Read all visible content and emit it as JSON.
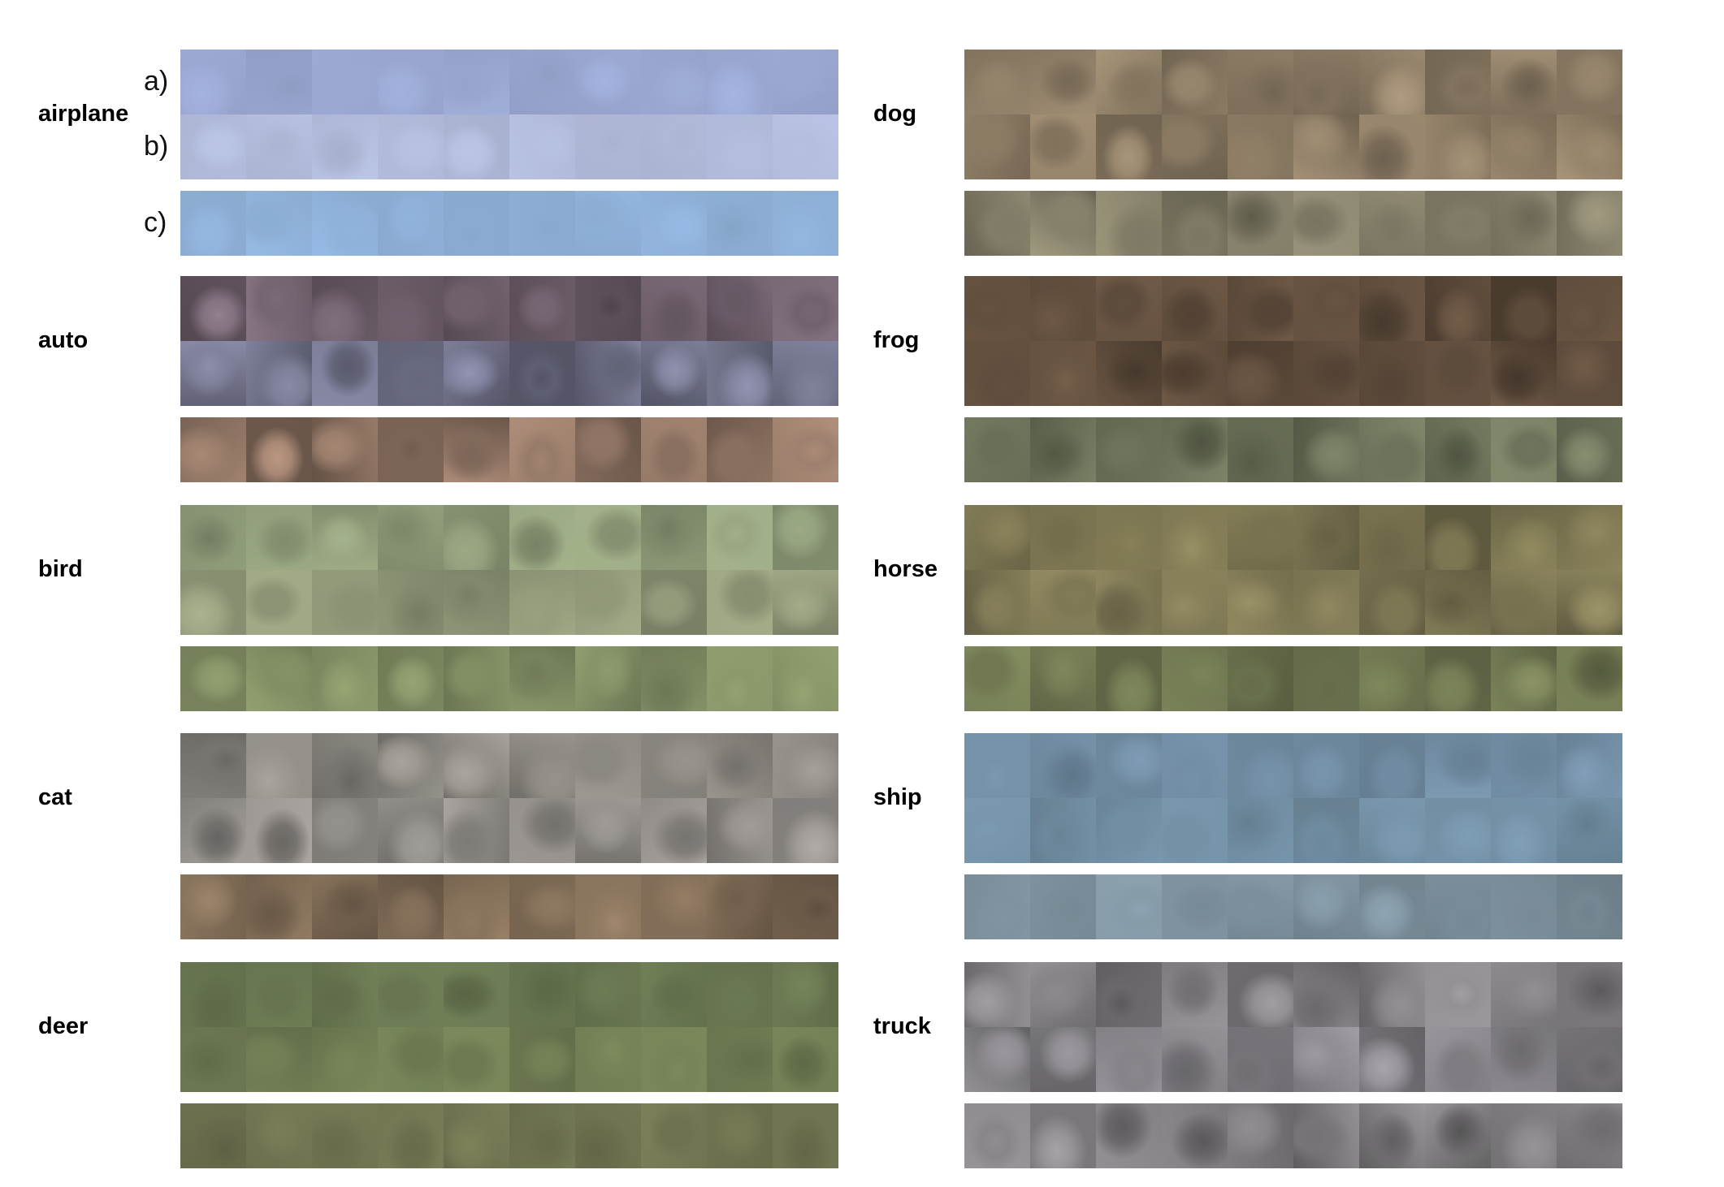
{
  "row_markers": [
    "a)",
    "b)",
    "c)"
  ],
  "columns": [
    {
      "classes": [
        {
          "label": "airplane",
          "tones": [
            "#9aa7d2",
            "#b3bcdc",
            "#8fb0d8"
          ],
          "contrast": 0.06
        },
        {
          "label": "auto",
          "tones": [
            "#6d5e6a",
            "#6e6f86",
            "#8a7060"
          ],
          "contrast": 0.28
        },
        {
          "label": "bird",
          "tones": [
            "#8e9a78",
            "#8f9677",
            "#7f8b62"
          ],
          "contrast": 0.16
        },
        {
          "label": "cat",
          "tones": [
            "#8a8680",
            "#8c8884",
            "#7e6a55"
          ],
          "contrast": 0.22
        },
        {
          "label": "deer",
          "tones": [
            "#67744f",
            "#6e7a52",
            "#6f7350"
          ],
          "contrast": 0.12
        }
      ]
    },
    {
      "classes": [
        {
          "label": "dog",
          "tones": [
            "#8d7d66",
            "#8a7a63",
            "#85806a"
          ],
          "contrast": 0.22
        },
        {
          "label": "frog",
          "tones": [
            "#5c4a3a",
            "#5d4b3b",
            "#6a7058"
          ],
          "contrast": 0.22
        },
        {
          "label": "horse",
          "tones": [
            "#77714f",
            "#7a7452",
            "#6e7550"
          ],
          "contrast": 0.22
        },
        {
          "label": "ship",
          "tones": [
            "#6f8aa0",
            "#7390a5",
            "#7b8f9b"
          ],
          "contrast": 0.12
        },
        {
          "label": "truck",
          "tones": [
            "#7f7c80",
            "#807e83",
            "#7d7b7d"
          ],
          "contrast": 0.26
        }
      ]
    }
  ]
}
